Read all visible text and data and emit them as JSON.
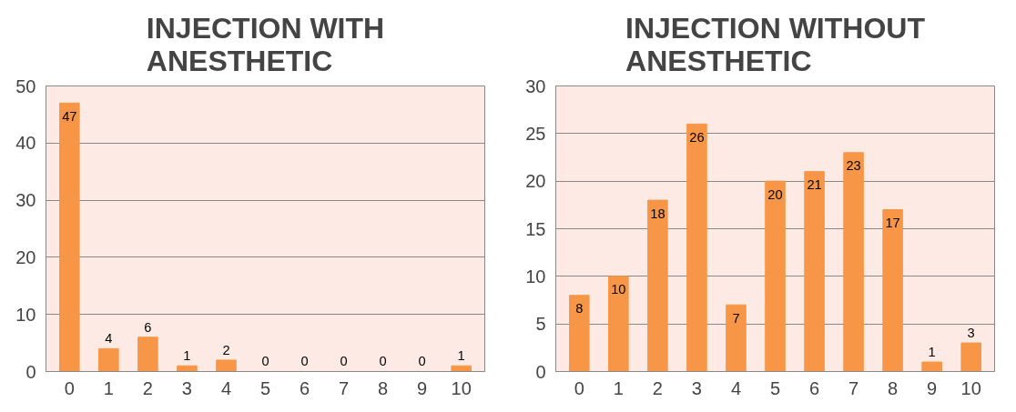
{
  "chart_data": [
    {
      "type": "bar",
      "title": "INJECTION WITH ANESTHETIC",
      "categories": [
        "0",
        "1",
        "2",
        "3",
        "4",
        "5",
        "6",
        "7",
        "8",
        "9",
        "10"
      ],
      "values": [
        47,
        4,
        6,
        1,
        2,
        0,
        0,
        0,
        0,
        0,
        1
      ],
      "color": "#f79646",
      "ylim": [
        0,
        50
      ],
      "yticks": [
        0,
        10,
        20,
        30,
        40,
        50
      ],
      "grid": "y",
      "data_labels": true
    },
    {
      "type": "bar",
      "title": "INJECTION WITHOUT ANESTHETIC",
      "categories": [
        "0",
        "1",
        "2",
        "3",
        "4",
        "5",
        "6",
        "7",
        "8",
        "9",
        "10"
      ],
      "values": [
        8,
        10,
        18,
        26,
        7,
        20,
        21,
        23,
        17,
        1,
        3
      ],
      "color": "#f79646",
      "ylim": [
        0,
        30
      ],
      "yticks": [
        0,
        5,
        10,
        15,
        20,
        25,
        30
      ],
      "grid": "y",
      "data_labels": true
    }
  ]
}
